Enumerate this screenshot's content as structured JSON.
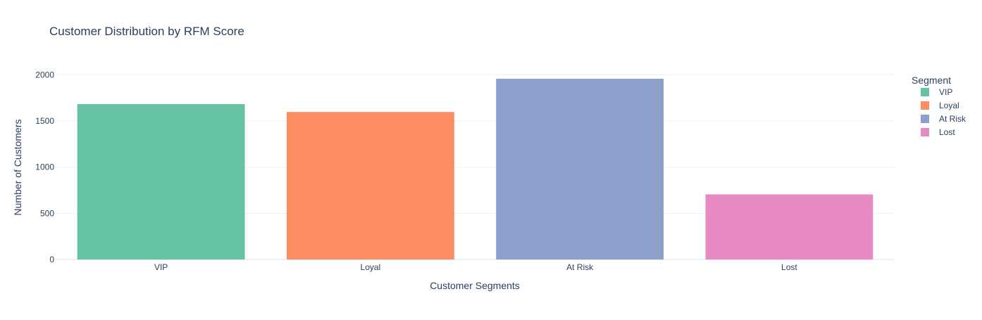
{
  "chart_data": {
    "type": "bar",
    "title": "Customer Distribution by RFM Score",
    "xlabel": "Customer Segments",
    "ylabel": "Number of Customers",
    "categories": [
      "VIP",
      "Loyal",
      "At Risk",
      "Lost"
    ],
    "series": [
      {
        "name": "VIP",
        "category": "VIP",
        "value": 1682,
        "color": "#66c2a5"
      },
      {
        "name": "Loyal",
        "category": "Loyal",
        "value": 1597,
        "color": "#fc8d62"
      },
      {
        "name": "At Risk",
        "category": "At Risk",
        "value": 1957,
        "color": "#8da0cb"
      },
      {
        "name": "Lost",
        "category": "Lost",
        "value": 705,
        "color": "#e78ac3"
      }
    ],
    "ylim": [
      0,
      2200
    ],
    "yticks": [
      0,
      500,
      1000,
      1500,
      2000
    ],
    "grid": true,
    "legend": {
      "title": "Segment",
      "placement": "right"
    },
    "colors": {
      "text": "#2a3f5f",
      "grid": "#ebf0f8"
    }
  }
}
